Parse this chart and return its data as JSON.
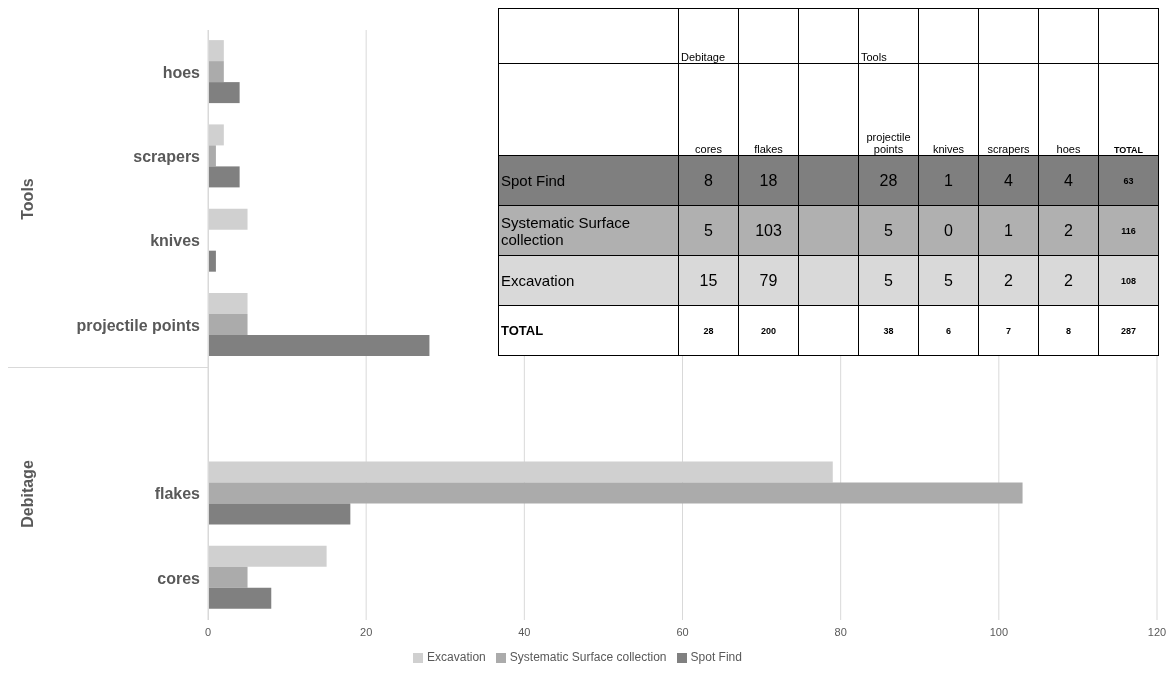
{
  "chart_data": [
    {
      "type": "bar",
      "orientation": "horizontal",
      "categories": [
        "hoes",
        "scrapers",
        "knives",
        "projectile points",
        null,
        "flakes",
        "cores"
      ],
      "series": [
        {
          "name": "Excavation",
          "color": "#d0d0d0",
          "values": [
            2,
            2,
            5,
            5,
            null,
            79,
            15
          ]
        },
        {
          "name": "Systematic Surface collection",
          "color": "#ababab",
          "values": [
            2,
            1,
            0,
            5,
            null,
            103,
            5
          ]
        },
        {
          "name": "Spot Find",
          "color": "#808080",
          "values": [
            4,
            4,
            1,
            28,
            null,
            18,
            8
          ]
        }
      ],
      "xlim": [
        0,
        120
      ],
      "xticks": [
        0,
        20,
        40,
        60,
        80,
        100,
        120
      ],
      "grid": "x",
      "legend": "bottom",
      "annotations": [
        "Tools",
        "Debitage"
      ]
    },
    {
      "type": "heatmap",
      "data_labels": true,
      "annotations": [
        "Debitage",
        "Tools"
      ],
      "categories": [
        "cores",
        "flakes",
        null,
        "projectile points",
        "knives",
        "scrapers",
        "hoes",
        "TOTAL"
      ],
      "y_categories": [
        "Spot Find",
        "Systematic Surface collection",
        "Excavation",
        "TOTAL"
      ],
      "colors": [
        "#7f7f7f",
        "#b0b0b0",
        "#d9d9d9",
        "#ffffff"
      ],
      "cells": [
        [
          8,
          18,
          null,
          28,
          1,
          4,
          4,
          63
        ],
        [
          5,
          103,
          null,
          5,
          0,
          1,
          2,
          116
        ],
        [
          15,
          79,
          null,
          5,
          5,
          2,
          2,
          108
        ],
        [
          28,
          200,
          null,
          38,
          6,
          7,
          8,
          287
        ]
      ]
    }
  ]
}
